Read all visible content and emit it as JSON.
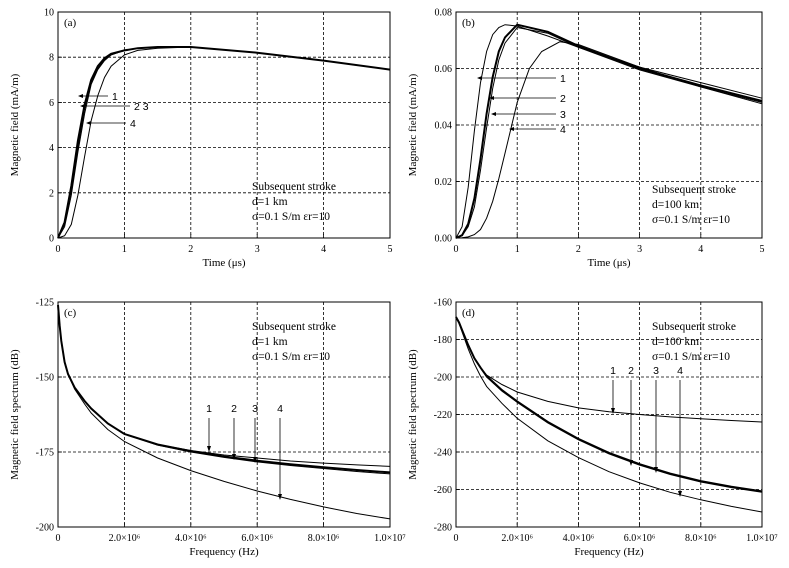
{
  "chart_data": [
    {
      "id": "a",
      "type": "line",
      "panel_label": "(a)",
      "xlabel": "Time (μs)",
      "ylabel": "Magnetic field (mA/m)",
      "xlim": [
        0,
        5
      ],
      "ylim": [
        0,
        10
      ],
      "xticks": [
        "0",
        "1",
        "2",
        "3",
        "4",
        "5"
      ],
      "yticks": [
        "0",
        "2",
        "4",
        "6",
        "8",
        "10"
      ],
      "annotation": [
        "Subsequent stroke",
        "d=1 km",
        "σ=0.1 S/m  εr=10"
      ],
      "curve_labels": [
        "1",
        "2 3",
        "4"
      ],
      "series": [
        {
          "name": "1",
          "x": [
            0,
            0.1,
            0.2,
            0.3,
            0.4,
            0.5,
            0.6,
            0.7,
            0.8,
            1.0,
            1.2,
            1.5,
            2.0,
            3.0,
            4.0,
            5.0
          ],
          "y": [
            0,
            0.7,
            2.3,
            4.3,
            5.9,
            7.0,
            7.6,
            7.95,
            8.15,
            8.3,
            8.4,
            8.45,
            8.45,
            8.2,
            7.85,
            7.45
          ]
        },
        {
          "name": "2",
          "x": [
            0,
            0.1,
            0.2,
            0.3,
            0.4,
            0.5,
            0.6,
            0.7,
            0.8,
            1.0,
            1.2,
            1.5,
            2.0,
            3.0,
            4.0,
            5.0
          ],
          "y": [
            0,
            0.6,
            2.1,
            4.0,
            5.7,
            6.9,
            7.5,
            7.9,
            8.1,
            8.3,
            8.4,
            8.45,
            8.45,
            8.2,
            7.85,
            7.45
          ]
        },
        {
          "name": "3",
          "x": [
            0,
            0.1,
            0.2,
            0.3,
            0.4,
            0.5,
            0.6,
            0.7,
            0.8,
            1.0,
            1.2,
            1.5,
            2.0,
            3.0,
            4.0,
            5.0
          ],
          "y": [
            0,
            0.5,
            1.9,
            3.8,
            5.5,
            6.8,
            7.45,
            7.85,
            8.1,
            8.3,
            8.4,
            8.45,
            8.45,
            8.2,
            7.85,
            7.45
          ]
        },
        {
          "name": "4",
          "x": [
            0,
            0.1,
            0.2,
            0.3,
            0.4,
            0.5,
            0.6,
            0.7,
            0.8,
            1.0,
            1.2,
            1.5,
            2.0,
            3.0,
            4.0,
            5.0
          ],
          "y": [
            0,
            0.1,
            0.6,
            1.9,
            3.6,
            5.2,
            6.3,
            7.1,
            7.6,
            8.1,
            8.3,
            8.4,
            8.45,
            8.2,
            7.85,
            7.45
          ]
        }
      ]
    },
    {
      "id": "b",
      "type": "line",
      "panel_label": "(b)",
      "xlabel": "Time (μs)",
      "ylabel": "Magnetic field (mA/m)",
      "xlim": [
        0,
        5
      ],
      "ylim": [
        0,
        0.08
      ],
      "xticks": [
        "0",
        "1",
        "2",
        "3",
        "4",
        "5"
      ],
      "yticks": [
        "0.00",
        "0.02",
        "0.04",
        "0.06",
        "0.08"
      ],
      "annotation": [
        "Subsequent stroke",
        "d=100 km",
        "σ=0.1 S/m  εr=10"
      ],
      "curve_labels": [
        "1",
        "2",
        "3",
        "4"
      ],
      "series": [
        {
          "name": "1",
          "x": [
            0,
            0.1,
            0.2,
            0.3,
            0.4,
            0.5,
            0.6,
            0.7,
            0.8,
            1.0,
            1.5,
            2.0,
            3.0,
            4.0,
            5.0
          ],
          "y": [
            0,
            0.004,
            0.018,
            0.038,
            0.055,
            0.066,
            0.072,
            0.0745,
            0.0755,
            0.075,
            0.0715,
            0.0675,
            0.0605,
            0.055,
            0.0495
          ]
        },
        {
          "name": "2",
          "x": [
            0,
            0.1,
            0.2,
            0.3,
            0.4,
            0.5,
            0.6,
            0.7,
            0.8,
            1.0,
            1.5,
            2.0,
            3.0,
            4.0,
            5.0
          ],
          "y": [
            0,
            0.001,
            0.005,
            0.014,
            0.028,
            0.044,
            0.057,
            0.066,
            0.071,
            0.0755,
            0.073,
            0.068,
            0.06,
            0.054,
            0.0485
          ]
        },
        {
          "name": "3",
          "x": [
            0,
            0.1,
            0.2,
            0.3,
            0.4,
            0.5,
            0.6,
            0.7,
            0.8,
            1.0,
            1.5,
            2.0,
            3.0,
            4.0,
            5.0
          ],
          "y": [
            0,
            0.0008,
            0.004,
            0.011,
            0.024,
            0.039,
            0.053,
            0.063,
            0.069,
            0.0745,
            0.0725,
            0.0675,
            0.0595,
            0.0535,
            0.048
          ]
        },
        {
          "name": "4",
          "x": [
            0,
            0.1,
            0.2,
            0.3,
            0.4,
            0.5,
            0.6,
            0.7,
            0.8,
            1.0,
            1.2,
            1.4,
            1.7,
            2.0,
            3.0,
            4.0,
            5.0
          ],
          "y": [
            0,
            0.0001,
            0.0004,
            0.0012,
            0.003,
            0.007,
            0.013,
            0.021,
            0.03,
            0.048,
            0.06,
            0.066,
            0.0695,
            0.0685,
            0.0605,
            0.0535,
            0.0475
          ]
        }
      ]
    },
    {
      "id": "c",
      "type": "line",
      "panel_label": "(c)",
      "xlabel": "Frequency (Hz)",
      "ylabel": "Magnetic field spectrum (dB)",
      "xlim": [
        0,
        10000000
      ],
      "ylim": [
        -200,
        -125
      ],
      "xticks": [
        "0",
        "2.0×10⁶",
        "4.0×10⁶",
        "6.0×10⁶",
        "8.0×10⁶",
        "1.0×10⁷"
      ],
      "yticks": [
        "-125",
        "-150",
        "-175",
        "-200"
      ],
      "annotation": [
        "Subsequent stroke",
        "d=1 km",
        "σ=0.1 S/m  εr=10"
      ],
      "curve_labels": [
        "1",
        "2",
        "3",
        "4"
      ],
      "series": [
        {
          "name": "1",
          "x": [
            0,
            50000,
            100000,
            200000,
            300000,
            500000,
            800000,
            1000000,
            1500000,
            2000000,
            3000000,
            4000000,
            5000000,
            6000000,
            7000000,
            8000000,
            9000000,
            10000000
          ],
          "y": [
            -126,
            -133,
            -138,
            -145,
            -149,
            -153.5,
            -158,
            -160.5,
            -165.5,
            -169,
            -172.5,
            -174.5,
            -176,
            -177,
            -178,
            -178.7,
            -179.3,
            -179.8
          ]
        },
        {
          "name": "2",
          "x": [
            0,
            50000,
            100000,
            200000,
            300000,
            500000,
            800000,
            1000000,
            1500000,
            2000000,
            3000000,
            4000000,
            5000000,
            6000000,
            7000000,
            8000000,
            9000000,
            10000000
          ],
          "y": [
            -126,
            -133,
            -138,
            -145,
            -149,
            -153.5,
            -158,
            -160.5,
            -165.5,
            -169,
            -172.5,
            -174.7,
            -176.5,
            -177.9,
            -179.1,
            -180.1,
            -181,
            -181.8
          ]
        },
        {
          "name": "3",
          "x": [
            0,
            50000,
            100000,
            200000,
            300000,
            500000,
            800000,
            1000000,
            1500000,
            2000000,
            3000000,
            4000000,
            5000000,
            6000000,
            7000000,
            8000000,
            9000000,
            10000000
          ],
          "y": [
            -126,
            -133,
            -138,
            -145,
            -149,
            -153.5,
            -158,
            -160.5,
            -165.5,
            -169,
            -172.7,
            -175,
            -176.8,
            -178.3,
            -179.5,
            -180.5,
            -181.5,
            -182.3
          ]
        },
        {
          "name": "4",
          "x": [
            0,
            50000,
            100000,
            200000,
            300000,
            500000,
            800000,
            1000000,
            1500000,
            2000000,
            3000000,
            4000000,
            5000000,
            6000000,
            7000000,
            8000000,
            9000000,
            10000000
          ],
          "y": [
            -126,
            -133,
            -138,
            -145,
            -149,
            -154,
            -159,
            -162,
            -167.5,
            -171.5,
            -177,
            -181.2,
            -184.8,
            -188,
            -190.8,
            -193.3,
            -195.5,
            -197.3
          ]
        }
      ]
    },
    {
      "id": "d",
      "type": "line",
      "panel_label": "(d)",
      "xlabel": "Frequency (Hz)",
      "ylabel": "Magnetic field spectrum (dB)",
      "xlim": [
        0,
        10000000
      ],
      "ylim": [
        -280,
        -160
      ],
      "xticks": [
        "0",
        "2.0×10⁶",
        "4.0×10⁶",
        "6.0×10⁶",
        "8.0×10⁶",
        "1.0×10⁷"
      ],
      "yticks": [
        "-160",
        "-180",
        "-200",
        "-220",
        "-240",
        "-260",
        "-280"
      ],
      "annotation": [
        "Subsequent stroke",
        "d=100 km",
        "σ=0.1 S/m  εr=10"
      ],
      "curve_labels": [
        "1",
        "2",
        "3",
        "4"
      ],
      "series": [
        {
          "name": "1",
          "x": [
            0,
            100000,
            200000,
            400000,
            600000,
            800000,
            1000000,
            1500000,
            2000000,
            3000000,
            4000000,
            5000000,
            6000000,
            7000000,
            8000000,
            9000000,
            10000000
          ],
          "y": [
            -168,
            -171,
            -175,
            -183,
            -190,
            -195,
            -199,
            -204,
            -208,
            -213,
            -216.5,
            -218.5,
            -220,
            -221.3,
            -222.3,
            -223.2,
            -224
          ]
        },
        {
          "name": "2",
          "x": [
            0,
            100000,
            200000,
            400000,
            600000,
            800000,
            1000000,
            1500000,
            2000000,
            3000000,
            4000000,
            5000000,
            6000000,
            7000000,
            8000000,
            9000000,
            10000000
          ],
          "y": [
            -168,
            -171,
            -175,
            -183,
            -190,
            -195,
            -199.5,
            -207,
            -213,
            -224,
            -233,
            -240.5,
            -246.5,
            -251.5,
            -255.5,
            -258.5,
            -261
          ]
        },
        {
          "name": "3",
          "x": [
            0,
            100000,
            200000,
            400000,
            600000,
            800000,
            1000000,
            1500000,
            2000000,
            3000000,
            4000000,
            5000000,
            6000000,
            7000000,
            8000000,
            9000000,
            10000000
          ],
          "y": [
            -168,
            -171,
            -175,
            -183,
            -190,
            -195,
            -200,
            -207.5,
            -213.5,
            -224.5,
            -233.5,
            -241,
            -247,
            -252,
            -256,
            -259,
            -261.5
          ]
        },
        {
          "name": "4",
          "x": [
            0,
            100000,
            200000,
            400000,
            600000,
            800000,
            1000000,
            1500000,
            2000000,
            3000000,
            4000000,
            5000000,
            6000000,
            7000000,
            8000000,
            9000000,
            10000000
          ],
          "y": [
            -168,
            -171.5,
            -176,
            -185,
            -193,
            -199.5,
            -205,
            -214,
            -222,
            -234,
            -243,
            -250.5,
            -256.5,
            -261.5,
            -265.5,
            -269,
            -272
          ]
        }
      ]
    }
  ]
}
